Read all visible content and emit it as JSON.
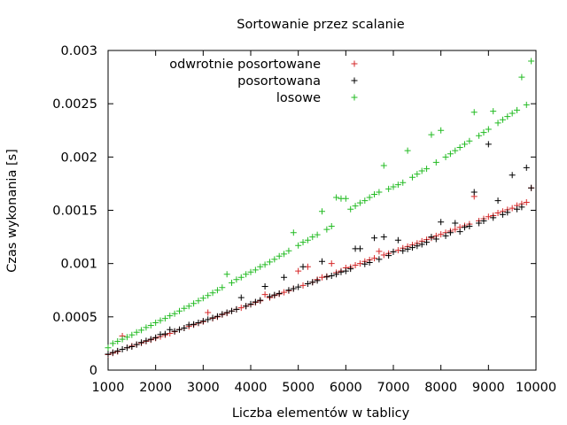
{
  "chart_data": {
    "type": "scatter",
    "title": "Sortowanie przez scalanie",
    "xlabel": "Liczba elementów w tablicy",
    "ylabel": "Czas wykonania [s]",
    "xlim": [
      1000,
      10000
    ],
    "ylim": [
      0,
      0.003
    ],
    "xticks": [
      1000,
      2000,
      3000,
      4000,
      5000,
      6000,
      7000,
      8000,
      9000,
      10000
    ],
    "xtick_labels": [
      "1000",
      "2000",
      "3000",
      "4000",
      "5000",
      "6000",
      "7000",
      "8000",
      "9000",
      "10000"
    ],
    "yticks": [
      0,
      0.0005,
      0.001,
      0.0015,
      0.002,
      0.0025,
      0.003
    ],
    "ytick_labels": [
      "0",
      "0.0005",
      "0.001",
      "0.0015",
      "0.002",
      "0.0025",
      "0.003"
    ],
    "grid": false,
    "legend_position": "top-left",
    "marker": "+",
    "x": [
      1000,
      1100,
      1200,
      1300,
      1400,
      1500,
      1600,
      1700,
      1800,
      1900,
      2000,
      2100,
      2200,
      2300,
      2400,
      2500,
      2600,
      2700,
      2800,
      2900,
      3000,
      3100,
      3200,
      3300,
      3400,
      3500,
      3600,
      3700,
      3800,
      3900,
      4000,
      4100,
      4200,
      4300,
      4400,
      4500,
      4600,
      4700,
      4800,
      4900,
      5000,
      5100,
      5200,
      5300,
      5400,
      5500,
      5600,
      5700,
      5800,
      5900,
      6000,
      6100,
      6200,
      6300,
      6400,
      6500,
      6600,
      6700,
      6800,
      6900,
      7000,
      7100,
      7200,
      7300,
      7400,
      7500,
      7600,
      7700,
      7800,
      7900,
      8000,
      8100,
      8200,
      8300,
      8400,
      8500,
      8600,
      8700,
      8800,
      8900,
      9000,
      9100,
      9200,
      9300,
      9400,
      9500,
      9600,
      9700,
      9800,
      9900
    ],
    "series": [
      {
        "name": "odwrotnie posortowane",
        "color": "#d62728",
        "values": [
          0.000145,
          0.00016,
          0.000175,
          0.00032,
          0.00021,
          0.000225,
          0.00024,
          0.000255,
          0.00027,
          0.000285,
          0.0003,
          0.000315,
          0.00033,
          0.000345,
          0.00036,
          0.00038,
          0.000395,
          0.00041,
          0.000425,
          0.00044,
          0.000455,
          0.00054,
          0.000485,
          0.0005,
          0.00052,
          0.000535,
          0.000555,
          0.00057,
          0.000585,
          0.0006,
          0.000615,
          0.000635,
          0.00065,
          0.00071,
          0.00068,
          0.0007,
          0.000715,
          0.00073,
          0.000745,
          0.000765,
          0.00093,
          0.000795,
          0.00097,
          0.000825,
          0.00085,
          0.00087,
          0.00088,
          0.001,
          0.000915,
          0.00093,
          0.00096,
          0.000965,
          0.000985,
          0.001,
          0.00102,
          0.001035,
          0.00105,
          0.001115,
          0.00108,
          0.001095,
          0.00111,
          0.001125,
          0.001145,
          0.00116,
          0.001175,
          0.00119,
          0.00121,
          0.001225,
          0.00124,
          0.00126,
          0.001275,
          0.00129,
          0.001305,
          0.00132,
          0.00134,
          0.001355,
          0.00137,
          0.00163,
          0.0014,
          0.00142,
          0.00144,
          0.00145,
          0.001475,
          0.00149,
          0.001505,
          0.00152,
          0.001545,
          0.00156,
          0.001575,
          0.00171
        ]
      },
      {
        "name": "posortowana",
        "color": "#000000",
        "values": [
          0.00015,
          0.000165,
          0.00018,
          0.000195,
          0.00021,
          0.00022,
          0.00024,
          0.00026,
          0.000275,
          0.00029,
          0.000305,
          0.000335,
          0.00034,
          0.00038,
          0.000365,
          0.00038,
          0.000395,
          0.000425,
          0.00043,
          0.000445,
          0.00046,
          0.000475,
          0.00049,
          0.000505,
          0.000525,
          0.00054,
          0.000555,
          0.00057,
          0.00068,
          0.0006,
          0.00062,
          0.00064,
          0.000655,
          0.000785,
          0.00069,
          0.000705,
          0.00072,
          0.00087,
          0.00075,
          0.000765,
          0.00078,
          0.00097,
          0.00081,
          0.000825,
          0.00084,
          0.00102,
          0.000875,
          0.000885,
          0.0009,
          0.00092,
          0.00093,
          0.00095,
          0.00114,
          0.00114,
          0.000995,
          0.00101,
          0.00124,
          0.00104,
          0.00125,
          0.001075,
          0.00111,
          0.00122,
          0.00112,
          0.001135,
          0.00115,
          0.001165,
          0.00118,
          0.0012,
          0.00125,
          0.00123,
          0.00139,
          0.00126,
          0.00129,
          0.00138,
          0.0013,
          0.00134,
          0.00135,
          0.00167,
          0.00138,
          0.0014,
          0.00212,
          0.00143,
          0.00159,
          0.00146,
          0.00148,
          0.00183,
          0.00151,
          0.00153,
          0.0019,
          0.00171
        ]
      },
      {
        "name": "losowe",
        "color": "#22bb22",
        "values": [
          0.00021,
          0.00025,
          0.00027,
          0.00029,
          0.00031,
          0.00033,
          0.000355,
          0.000375,
          0.0004,
          0.00042,
          0.000445,
          0.000465,
          0.000485,
          0.00051,
          0.00053,
          0.000555,
          0.00058,
          0.0006,
          0.000625,
          0.00065,
          0.000675,
          0.0007,
          0.000725,
          0.00075,
          0.000775,
          0.0009,
          0.00082,
          0.00085,
          0.00087,
          0.0009,
          0.00092,
          0.00094,
          0.00097,
          0.00099,
          0.001015,
          0.00104,
          0.00107,
          0.00109,
          0.00112,
          0.00129,
          0.00117,
          0.0012,
          0.00122,
          0.00125,
          0.00127,
          0.00149,
          0.00132,
          0.00135,
          0.00162,
          0.00161,
          0.00161,
          0.00151,
          0.00154,
          0.00157,
          0.00159,
          0.00162,
          0.00165,
          0.00167,
          0.00192,
          0.0017,
          0.00172,
          0.00174,
          0.00176,
          0.00206,
          0.00181,
          0.00184,
          0.00187,
          0.00189,
          0.00221,
          0.00195,
          0.00225,
          0.002,
          0.00203,
          0.00206,
          0.00209,
          0.00212,
          0.00215,
          0.00242,
          0.0022,
          0.00223,
          0.00226,
          0.00243,
          0.00232,
          0.00235,
          0.00238,
          0.00241,
          0.00244,
          0.00275,
          0.00249,
          0.0029
        ]
      }
    ]
  }
}
